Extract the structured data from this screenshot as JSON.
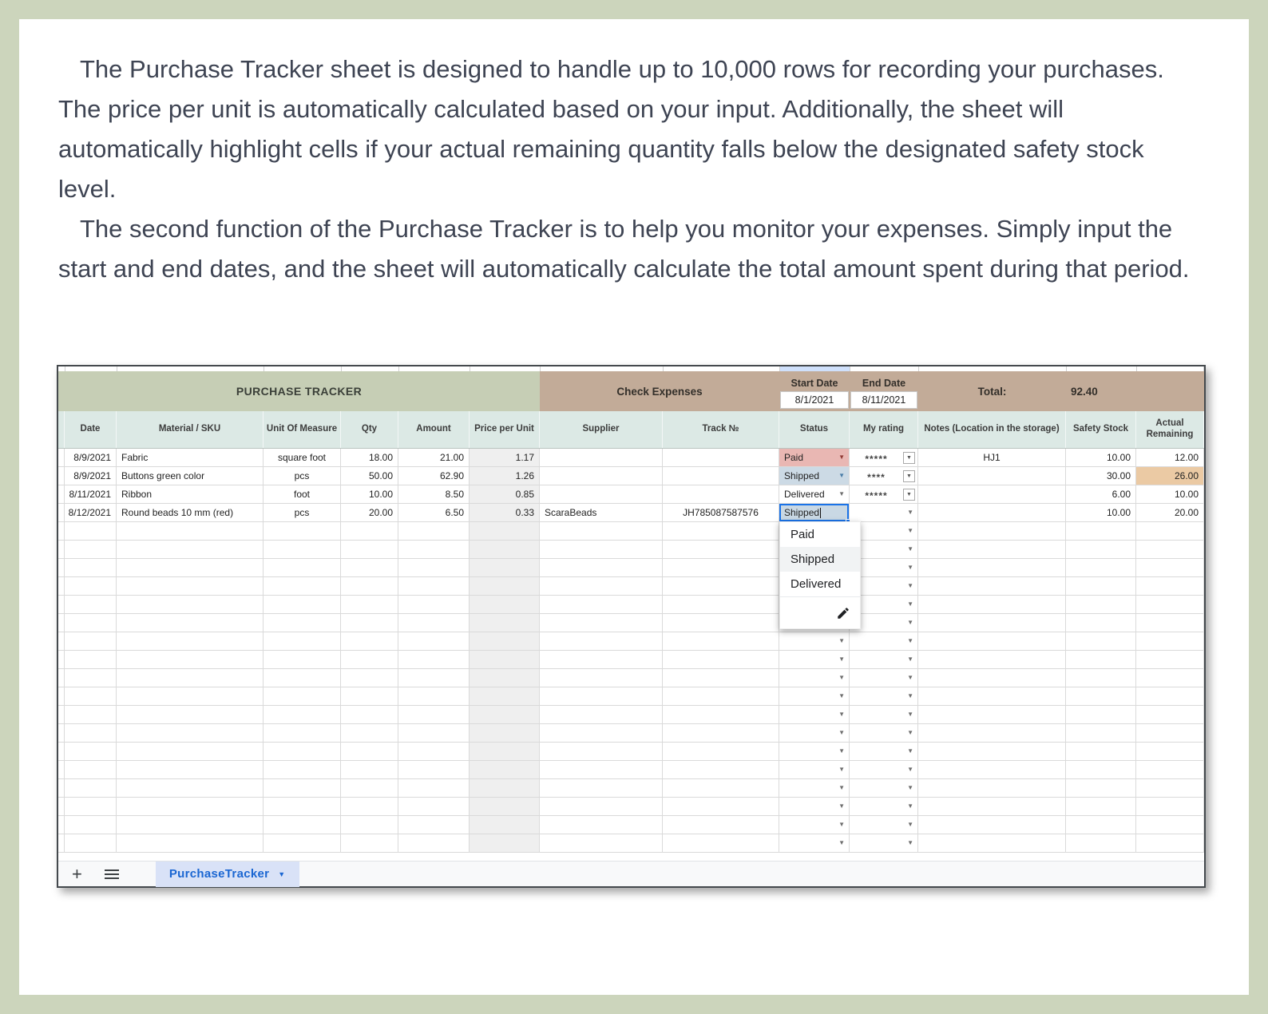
{
  "intro": {
    "p1": "The Purchase Tracker sheet is designed to handle up to 10,000 rows for recording your purchases. The price per unit is automatically calculated based on your input. Additionally, the sheet will automatically highlight cells if your actual remaining quantity falls below the designated safety stock level.",
    "p2": "The second function of the Purchase Tracker is to help you monitor your expenses. Simply input the start and end dates, and the sheet will automatically calculate the total amount spent during that period."
  },
  "sheet": {
    "title": "PURCHASE TRACKER",
    "expenses": {
      "title": "Check Expenses",
      "start_label": "Start Date",
      "end_label": "End Date",
      "start_value": "8/1/2021",
      "end_value": "8/11/2021",
      "total_label": "Total:",
      "total_value": "92.40"
    },
    "columns": [
      "",
      "Date",
      "Material / SKU",
      "Unit Of Measure",
      "Qty",
      "Amount",
      "Price per Unit",
      "Supplier",
      "Track №",
      "Status",
      "My rating",
      "Notes (Location in the storage)",
      "Safety Stock",
      "Actual Remaining"
    ],
    "rows": [
      {
        "date": "8/9/2021",
        "material": "Fabric",
        "unit": "square foot",
        "qty": "18.00",
        "amount": "21.00",
        "ppu": "1.17",
        "supplier": "",
        "track": "",
        "status": "Paid",
        "status_variant": "paid",
        "rating": "*****",
        "notes": "HJ1",
        "safety": "10.00",
        "actual": "12.00",
        "actual_alert": false
      },
      {
        "date": "8/9/2021",
        "material": "Buttons green color",
        "unit": "pcs",
        "qty": "50.00",
        "amount": "62.90",
        "ppu": "1.26",
        "supplier": "",
        "track": "",
        "status": "Shipped",
        "status_variant": "shipped",
        "rating": "****",
        "notes": "",
        "safety": "30.00",
        "actual": "26.00",
        "actual_alert": true
      },
      {
        "date": "8/11/2021",
        "material": "Ribbon",
        "unit": "foot",
        "qty": "10.00",
        "amount": "8.50",
        "ppu": "0.85",
        "supplier": "",
        "track": "",
        "status": "Delivered",
        "status_variant": "plain",
        "rating": "*****",
        "notes": "",
        "safety": "6.00",
        "actual": "10.00",
        "actual_alert": false
      },
      {
        "date": "8/12/2021",
        "material": "Round beads 10 mm (red)",
        "unit": "pcs",
        "qty": "20.00",
        "amount": "6.50",
        "ppu": "0.33",
        "supplier": "ScaraBeads",
        "track": "JH785087587576",
        "status": "Shipped",
        "status_variant": "edit",
        "rating": "",
        "notes": "",
        "safety": "10.00",
        "actual": "20.00",
        "actual_alert": false
      }
    ],
    "empty_row_count": 18,
    "dropdown": {
      "items": [
        "Paid",
        "Shipped",
        "Delivered"
      ],
      "selected": "Shipped",
      "edit_icon": "pencil-icon"
    },
    "tabbar": {
      "tab_label": "PurchaseTracker",
      "add_icon": "plus-icon",
      "all_sheets_icon": "hamburger-icon"
    }
  },
  "colors": {
    "frame": "#ccd5bc",
    "title_band": "#c6ceb5",
    "expenses_band": "#c2ab98",
    "header_row": "#dce9e5",
    "status_paid_bg": "#e9b7b3",
    "status_shipped_bg": "#ccdae5",
    "low_stock_alert_bg": "#ebcaa4",
    "calculated_col_bg": "#efefef",
    "edit_cell_border": "#1a73e8",
    "tab_accent": "#1a66d2"
  }
}
